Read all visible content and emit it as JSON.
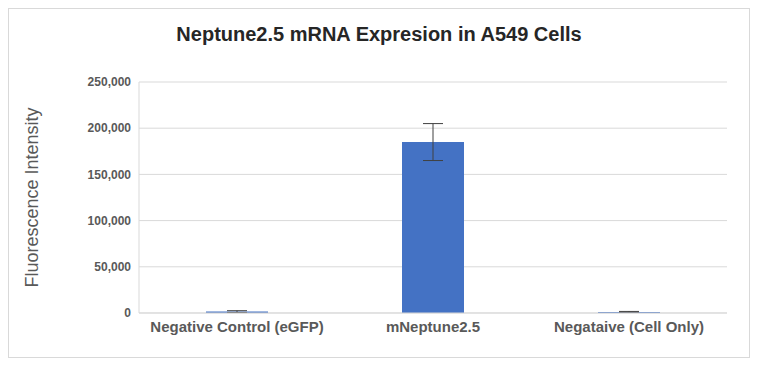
{
  "chart_data": {
    "type": "bar",
    "title": "Neptune2.5 mRNA Expresion in A549 Cells",
    "y_label": "Fluorescence Intensity",
    "categories": [
      "Negative Control (eGFP)",
      "mNeptune2.5",
      "Negataive (Cell Only)"
    ],
    "values": [
      1500,
      185000,
      1200
    ],
    "errors": [
      1000,
      20000,
      500
    ],
    "color": "#4472c4",
    "ylim": [
      0,
      250000
    ],
    "yticks": [
      0,
      {
        "value": 50000,
        "label": "50,000"
      },
      {
        "value": 100000,
        "label": "100,000"
      },
      {
        "value": 150000,
        "label": "150,000"
      },
      {
        "value": 200000,
        "label": "200,000"
      },
      {
        "value": 250000,
        "label": "250,000"
      }
    ],
    "grid": true
  }
}
